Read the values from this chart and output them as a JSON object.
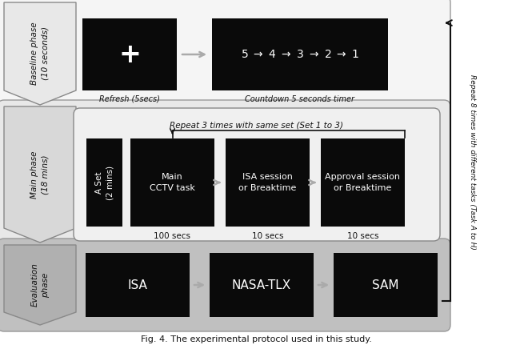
{
  "bg_color": "#ffffff",
  "black": "#0a0a0a",
  "white": "#ffffff",
  "arrow_gray": "#aaaaaa",
  "dark_text": "#111111",
  "phases": {
    "baseline": {
      "label": "Baseline phase\n(10 seconds)",
      "outer_color": "#f5f5f5",
      "chev_color": "#e8e8e8",
      "screen1_text": "+",
      "screen1_label": "Refresh (5secs)",
      "screen2_label": "Countdown 5 seconds timer"
    },
    "main": {
      "label": "Main phase\n(18 mins)",
      "outer_color": "#e8e8e8",
      "chev_color": "#d8d8d8",
      "inner_color": "#f0f0f0",
      "repeat_label": "Repeat 3 times with same set (Set 1 to 3)",
      "aset_label": "A Set\n(2 mins)",
      "tasks": [
        {
          "text": "Main\nCCTV task",
          "dur": "100 secs"
        },
        {
          "text": "ISA session\nor Breaktime",
          "dur": "10 secs"
        },
        {
          "text": "Approval session\nor Breaktime",
          "dur": "10 secs"
        }
      ]
    },
    "eval": {
      "label": "Evaluation\nphase",
      "outer_color": "#c0c0c0",
      "chev_color": "#b0b0b0",
      "boxes": [
        "ISA",
        "NASA-TLX",
        "SAM"
      ]
    }
  },
  "right_label": "Repeat 8 times with different tasks (Task A to H)",
  "caption": "Fig. 4. The experimental protocol used in this study."
}
